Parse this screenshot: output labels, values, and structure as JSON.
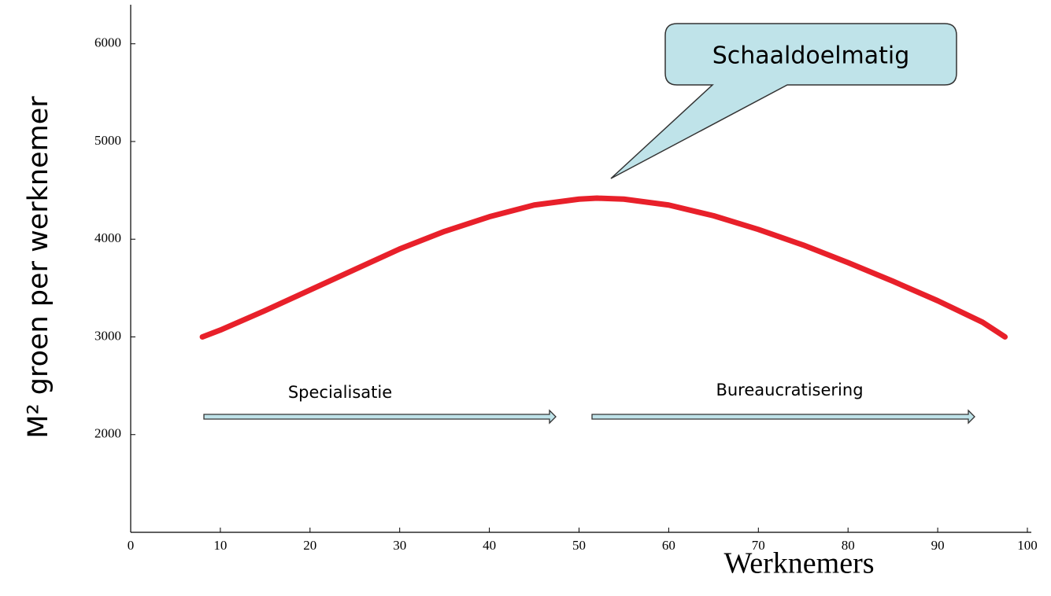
{
  "chart_data": {
    "type": "line",
    "x_label": "Werknemers",
    "y_label": "M² groen per werknemer",
    "xlim": [
      0,
      100
    ],
    "ylim": [
      1000,
      6400
    ],
    "xticks": [
      0,
      10,
      20,
      30,
      40,
      50,
      60,
      70,
      80,
      90,
      100
    ],
    "yticks": [
      2000,
      3000,
      4000,
      5000,
      6000
    ],
    "series": [
      {
        "color": "#e8202a",
        "x": [
          8,
          10,
          15,
          20,
          25,
          30,
          35,
          40,
          45,
          50,
          52,
          55,
          60,
          65,
          70,
          75,
          80,
          85,
          90,
          95,
          97.5
        ],
        "values": [
          3000,
          3070,
          3270,
          3480,
          3690,
          3900,
          4080,
          4230,
          4350,
          4410,
          4420,
          4410,
          4350,
          4240,
          4100,
          3940,
          3760,
          3570,
          3370,
          3150,
          3000
        ]
      }
    ],
    "annotations": {
      "callout": "Schaaldoelmatig",
      "left_arrow": "Specialisatie",
      "right_arrow": "Bureaucratisering"
    }
  }
}
